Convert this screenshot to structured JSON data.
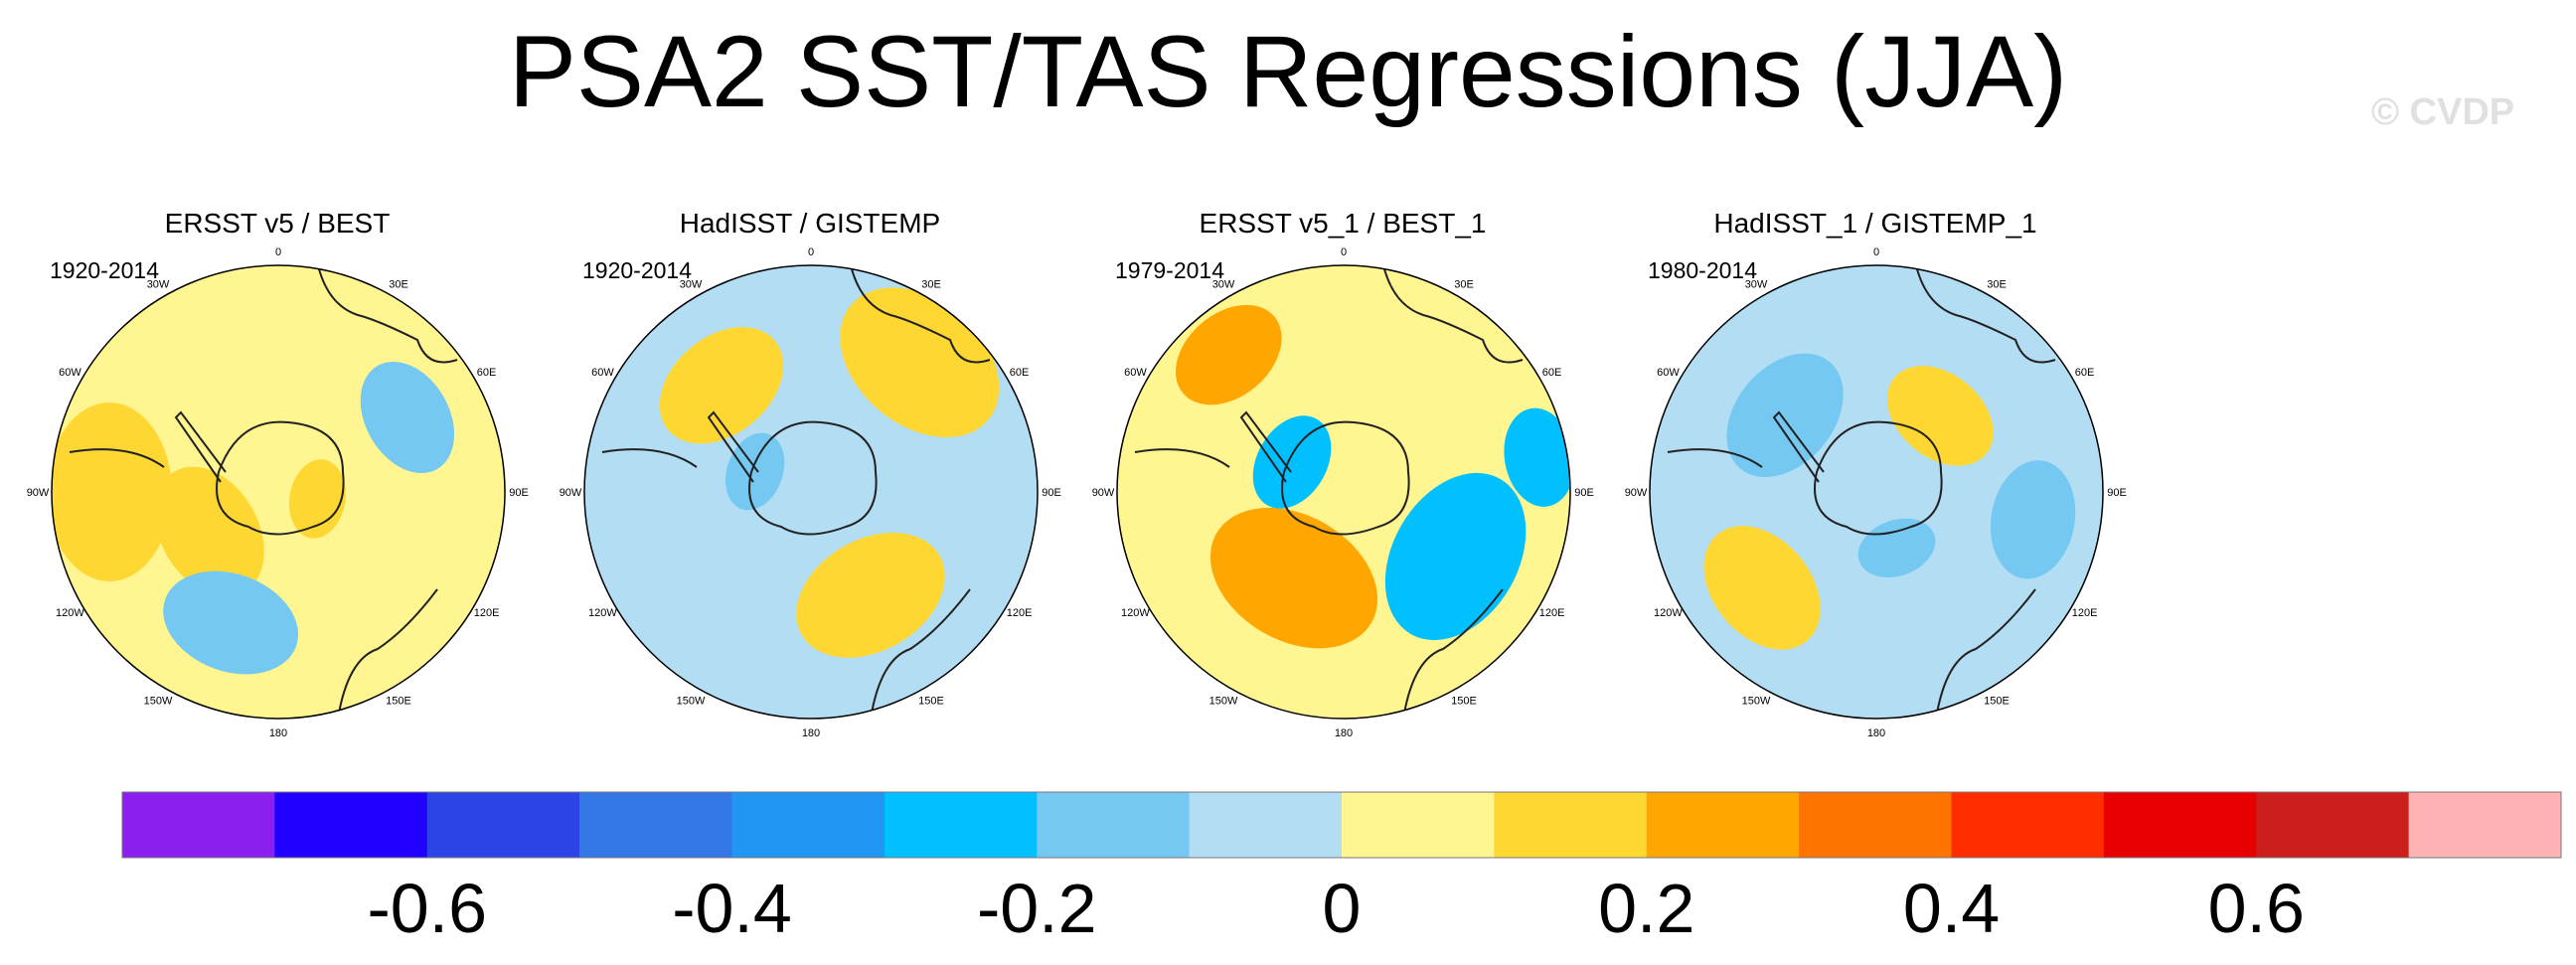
{
  "title": "PSA2 SST/TAS Regressions (JJA)",
  "watermark": "© CVDP",
  "chart_data": {
    "type": "heatmap",
    "projection": "south-polar-stereographic",
    "title": "PSA2 SST/TAS Regressions (JJA)",
    "longitude_labels": [
      "0",
      "30E",
      "60E",
      "90E",
      "120E",
      "150E",
      "180",
      "150W",
      "120W",
      "90W",
      "60W",
      "30W"
    ],
    "panels": [
      {
        "name": "ERSST v5 / BEST",
        "period": "1920-2014",
        "dominant_range": "0 to 0.1",
        "max_range": "0.1 to 0.2",
        "min_range": "-0.2 to -0.1"
      },
      {
        "name": "HadISST / GISTEMP",
        "period": "1920-2014",
        "dominant_range": "-0.1 to 0",
        "max_range": "0.1 to 0.2",
        "min_range": "-0.2 to -0.1"
      },
      {
        "name": "ERSST v5_1 / BEST_1",
        "period": "1979-2014",
        "dominant_range": "0 to 0.1",
        "max_range": "0.2 to 0.3",
        "min_range": "-0.3 to -0.2"
      },
      {
        "name": "HadISST_1 / GISTEMP_1",
        "period": "1980-2014",
        "dominant_range": "-0.1 to 0",
        "max_range": "0.1 to 0.2",
        "min_range": "-0.2 to -0.1"
      }
    ],
    "colorbar": {
      "levels": [
        -0.7,
        -0.6,
        -0.5,
        -0.4,
        -0.3,
        -0.2,
        -0.1,
        0,
        0.1,
        0.2,
        0.3,
        0.4,
        0.5,
        0.6,
        0.7
      ],
      "colors": [
        "#8a1ff0",
        "#2200ff",
        "#2c44e6",
        "#3478e8",
        "#2196f3",
        "#00c0ff",
        "#74c8f2",
        "#b3ddf2",
        "#fff591",
        "#ffd733",
        "#ffa700",
        "#ff7300",
        "#ff2d00",
        "#e60000",
        "#cd1e1e",
        "#ffb3b3"
      ],
      "tick_labels": [
        "-0.6",
        "-0.4",
        "-0.2",
        "0",
        "0.2",
        "0.4",
        "0.6"
      ],
      "tick_values": [
        -0.6,
        -0.4,
        -0.2,
        0,
        0.2,
        0.4,
        0.6
      ]
    }
  }
}
